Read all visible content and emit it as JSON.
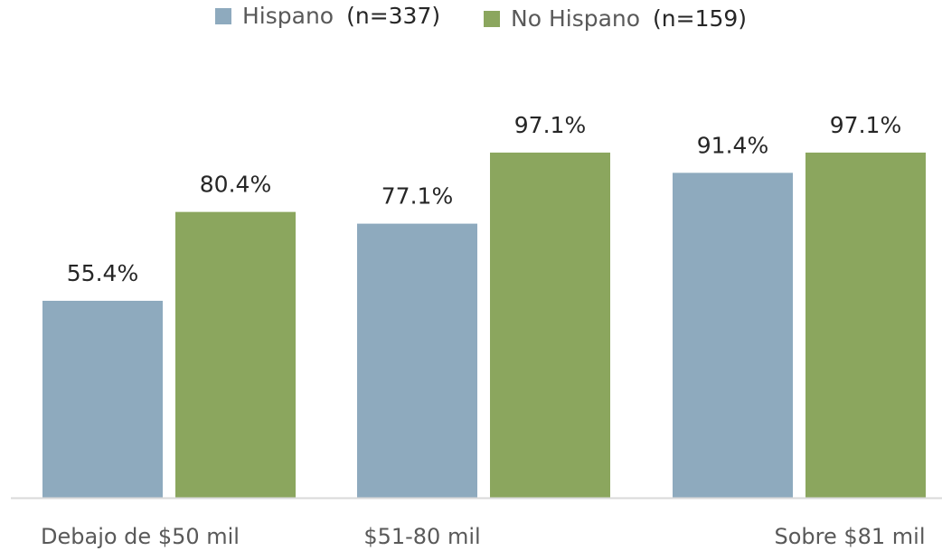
{
  "legend": {
    "items": [
      {
        "name": "Hispano",
        "n": "(n=337)",
        "color": "#8eaabe"
      },
      {
        "name": "No Hispano",
        "n": "(n=159)",
        "color": "#8ba65e"
      }
    ]
  },
  "chart_data": {
    "type": "bar",
    "categories": [
      "Debajo de $50 mil",
      "$51-80 mil",
      "Sobre $81 mil"
    ],
    "series": [
      {
        "name": "Hispano (n=337)",
        "values": [
          55.4,
          77.1,
          91.4
        ],
        "labels": [
          "55.4%",
          "77.1%",
          "91.4%"
        ],
        "color": "#8eaabe"
      },
      {
        "name": "No Hispano (n=159)",
        "values": [
          80.4,
          97.1,
          97.1
        ],
        "labels": [
          "80.4%",
          "97.1%",
          "97.1%"
        ],
        "color": "#8ba65e"
      }
    ],
    "ylim": [
      0,
      100
    ],
    "grid": false,
    "legend_position": "top"
  }
}
